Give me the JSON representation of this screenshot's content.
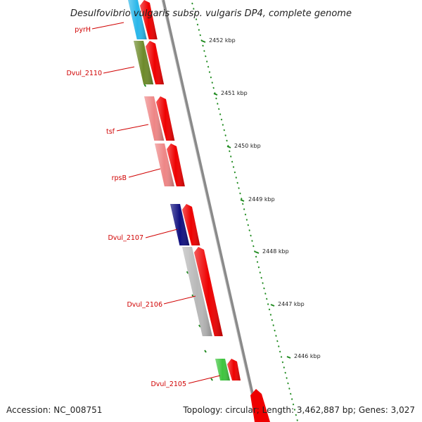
{
  "title": "Desulfovibrio vulgaris subsp. vulgaris DP4, complete genome",
  "accession": "Accession: NC_008751",
  "summary": "Topology: circular; Length: 3,462,887 bp; Genes: 3,027",
  "kbp_labels": [
    "2452 kbp",
    "2451 kbp",
    "2450 kbp",
    "2449 kbp",
    "2448 kbp",
    "2447 kbp",
    "2446 kbp"
  ],
  "genes": [
    {
      "name": "pyrH",
      "color": "#29b7ea"
    },
    {
      "name": "Dvul_2110",
      "color": "#6d8a2a"
    },
    {
      "name": "tsf",
      "color": "#ee8686"
    },
    {
      "name": "rpsB",
      "color": "#ee8686"
    },
    {
      "name": "Dvul_2107",
      "color": "#101080"
    },
    {
      "name": "Dvul_2106",
      "color": "#b8b8b8"
    },
    {
      "name": "Dvul_2105",
      "color": "#3ec43e"
    }
  ],
  "colors": {
    "arrow": "#ee0000",
    "label": "#d00000",
    "backbone": "#808080",
    "tick": "#1e8a1e"
  }
}
